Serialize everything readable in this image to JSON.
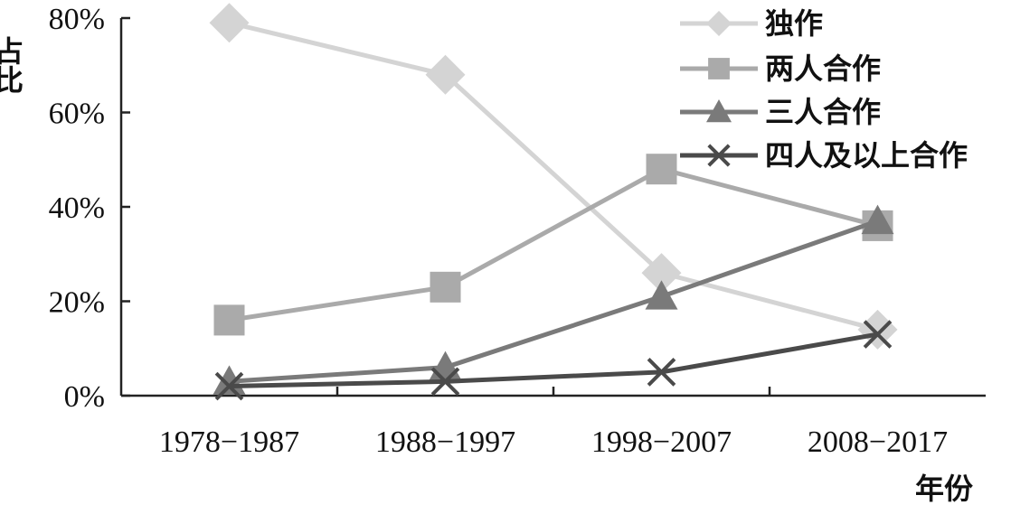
{
  "chart_data": {
    "type": "line",
    "title": "",
    "xlabel": "年份",
    "ylabel": "占比",
    "categories": [
      "1978−1987",
      "1988−1997",
      "1998−2007",
      "2008−2017"
    ],
    "ylim": [
      0,
      80
    ],
    "yticks": [
      0,
      20,
      40,
      60,
      80
    ],
    "ytick_labels": [
      "0%",
      "20%",
      "40%",
      "60%",
      "80%"
    ],
    "grid": false,
    "legend_position": "top-right",
    "series": [
      {
        "name": "独作",
        "values": [
          79,
          68,
          26,
          14
        ],
        "color": "#d4d4d4",
        "marker": "diamond"
      },
      {
        "name": "两人合作",
        "values": [
          16,
          23,
          48,
          36
        ],
        "color": "#aaaaaa",
        "marker": "square"
      },
      {
        "name": "三人合作",
        "values": [
          3,
          6,
          21,
          37
        ],
        "color": "#7a7a7a",
        "marker": "triangle"
      },
      {
        "name": "四人及以上合作",
        "values": [
          2,
          3,
          5,
          13
        ],
        "color": "#4a4a4a",
        "marker": "x"
      }
    ]
  }
}
